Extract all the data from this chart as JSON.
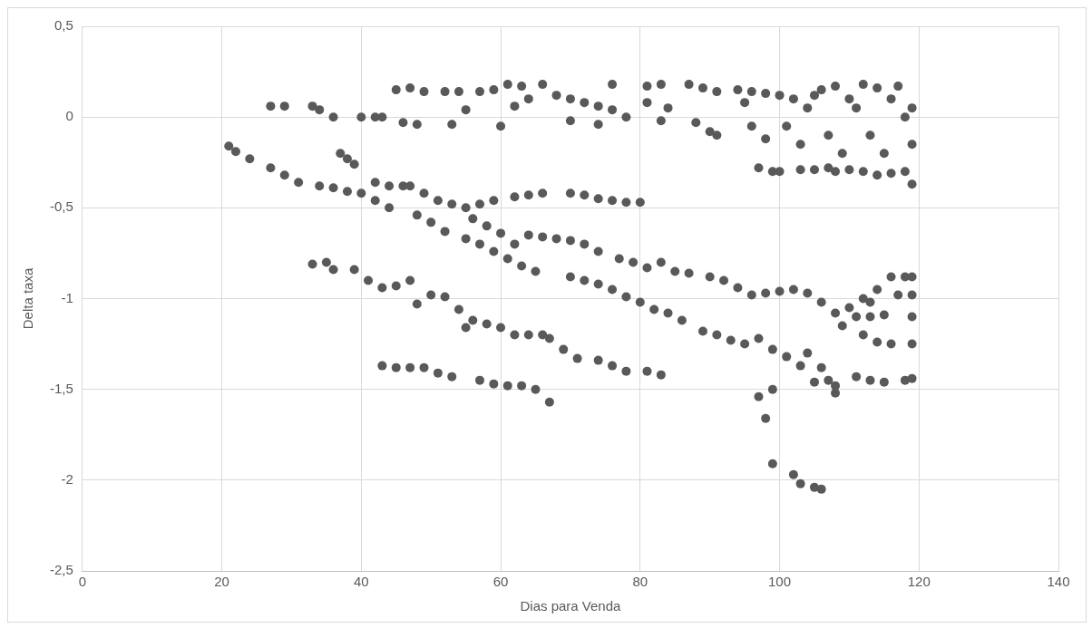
{
  "chart_data": {
    "type": "scatter",
    "xlabel": "Dias para Venda",
    "ylabel": "Delta taxa",
    "xlim": [
      0,
      140
    ],
    "xticks": [
      0,
      20,
      40,
      60,
      80,
      100,
      120,
      140
    ],
    "ylim": [
      -2.5,
      0.5
    ],
    "yticks": [
      {
        "value": -2.5,
        "label": "-2,5"
      },
      -2,
      {
        "value": -1.5,
        "label": "-1,5"
      },
      -1,
      {
        "value": -0.5,
        "label": "-0,5"
      },
      0,
      {
        "value": 0.5,
        "label": "0,5"
      }
    ],
    "grid": true,
    "legend": false,
    "marker": "circle",
    "series": [
      {
        "color": "#595959",
        "x": [
          27,
          29,
          33,
          34,
          36,
          40,
          42,
          43,
          45,
          47,
          49,
          46,
          48,
          52,
          54,
          57,
          53,
          55,
          59,
          61,
          63,
          60,
          62,
          64,
          66,
          68,
          70,
          72,
          70,
          74,
          76,
          74,
          78,
          76,
          81,
          83,
          81,
          84,
          83,
          87,
          89,
          91,
          88,
          90,
          91,
          94,
          96,
          98,
          95,
          96,
          98,
          100,
          102,
          104,
          101,
          103,
          105,
          106,
          108,
          110,
          107,
          109,
          111,
          112,
          114,
          116,
          118,
          113,
          115,
          117,
          119,
          119,
          97,
          99,
          100,
          103,
          105,
          107,
          108,
          110,
          112,
          114,
          116,
          118,
          119,
          21,
          22,
          24,
          27,
          29,
          31,
          34,
          36,
          38,
          40,
          42,
          44,
          37,
          38,
          39,
          42,
          44,
          46,
          47,
          49,
          51,
          53,
          55,
          57,
          59,
          62,
          64,
          66,
          70,
          72,
          74,
          76,
          78,
          80,
          48,
          50,
          52,
          55,
          57,
          59,
          61,
          63,
          65,
          70,
          72,
          74,
          76,
          78,
          80,
          82,
          84,
          86,
          89,
          91,
          93,
          95,
          97,
          99,
          101,
          104,
          106,
          108,
          56,
          58,
          60,
          62,
          64,
          66,
          68,
          70,
          72,
          74,
          77,
          79,
          81,
          83,
          85,
          87,
          90,
          92,
          94,
          96,
          98,
          100,
          102,
          104,
          106,
          108,
          110,
          112,
          114,
          33,
          35,
          36,
          39,
          41,
          43,
          45,
          47,
          48,
          50,
          52,
          54,
          55,
          56,
          58,
          60,
          62,
          64,
          66,
          67,
          69,
          71,
          74,
          76,
          78,
          81,
          83,
          43,
          45,
          47,
          49,
          51,
          53,
          57,
          59,
          61,
          63,
          65,
          67,
          97,
          98,
          99,
          99,
          102,
          103,
          105,
          106,
          103,
          105,
          107,
          108,
          111,
          113,
          115,
          118,
          119,
          112,
          114,
          116,
          119,
          111,
          113,
          115,
          117,
          119,
          119,
          116,
          118,
          119,
          109,
          113
        ],
        "values": [
          0.06,
          0.06,
          0.06,
          0.04,
          0,
          0,
          0,
          0,
          0.15,
          0.16,
          0.14,
          -0.03,
          -0.04,
          0.14,
          0.14,
          0.14,
          -0.04,
          0.04,
          0.15,
          0.18,
          0.17,
          -0.05,
          0.06,
          0.1,
          0.18,
          0.12,
          0.1,
          0.08,
          -0.02,
          0.06,
          0.04,
          -0.04,
          0,
          0.18,
          0.17,
          0.18,
          0.08,
          0.05,
          -0.02,
          0.18,
          0.16,
          0.14,
          -0.03,
          -0.08,
          -0.1,
          0.15,
          0.14,
          0.13,
          0.08,
          -0.05,
          -0.12,
          0.12,
          0.1,
          0.05,
          -0.05,
          -0.15,
          0.12,
          0.15,
          0.17,
          0.1,
          -0.1,
          -0.2,
          0.05,
          0.18,
          0.16,
          0.1,
          0,
          -0.1,
          -0.2,
          0.17,
          0.05,
          -0.15,
          -0.28,
          -0.3,
          -0.3,
          -0.29,
          -0.29,
          -0.28,
          -0.3,
          -0.29,
          -0.3,
          -0.32,
          -0.31,
          -0.3,
          -0.37,
          -0.16,
          -0.19,
          -0.23,
          -0.28,
          -0.32,
          -0.36,
          -0.38,
          -0.39,
          -0.41,
          -0.42,
          -0.46,
          -0.5,
          -0.2,
          -0.23,
          -0.26,
          -0.36,
          -0.38,
          -0.38,
          -0.38,
          -0.42,
          -0.46,
          -0.48,
          -0.5,
          -0.48,
          -0.46,
          -0.44,
          -0.43,
          -0.42,
          -0.42,
          -0.43,
          -0.45,
          -0.46,
          -0.47,
          -0.47,
          -0.54,
          -0.58,
          -0.63,
          -0.67,
          -0.7,
          -0.74,
          -0.78,
          -0.82,
          -0.85,
          -0.88,
          -0.9,
          -0.92,
          -0.95,
          -0.99,
          -1.02,
          -1.06,
          -1.08,
          -1.12,
          -1.18,
          -1.2,
          -1.23,
          -1.25,
          -1.22,
          -1.28,
          -1.32,
          -1.3,
          -1.38,
          -1.48,
          -0.56,
          -0.6,
          -0.64,
          -0.7,
          -0.65,
          -0.66,
          -0.67,
          -0.68,
          -0.7,
          -0.74,
          -0.78,
          -0.8,
          -0.83,
          -0.8,
          -0.85,
          -0.86,
          -0.88,
          -0.9,
          -0.94,
          -0.98,
          -0.97,
          -0.96,
          -0.95,
          -0.97,
          -1.02,
          -1.08,
          -1.05,
          -1,
          -0.95,
          -0.81,
          -0.8,
          -0.84,
          -0.84,
          -0.9,
          -0.94,
          -0.93,
          -0.9,
          -1.03,
          -0.98,
          -0.99,
          -1.06,
          -1.16,
          -1.12,
          -1.14,
          -1.16,
          -1.2,
          -1.2,
          -1.2,
          -1.22,
          -1.28,
          -1.33,
          -1.34,
          -1.37,
          -1.4,
          -1.4,
          -1.42,
          -1.37,
          -1.38,
          -1.38,
          -1.38,
          -1.41,
          -1.43,
          -1.45,
          -1.47,
          -1.48,
          -1.48,
          -1.5,
          -1.57,
          -1.54,
          -1.66,
          -1.5,
          -1.91,
          -1.97,
          -2.02,
          -2.04,
          -2.05,
          -1.37,
          -1.46,
          -1.45,
          -1.52,
          -1.43,
          -1.45,
          -1.46,
          -1.45,
          -1.44,
          -1.2,
          -1.24,
          -1.25,
          -1.25,
          -1.1,
          -1.1,
          -1.09,
          -0.98,
          -0.98,
          -1.1,
          -0.88,
          -0.88,
          -0.88,
          -1.15,
          -1.02
        ]
      }
    ]
  }
}
